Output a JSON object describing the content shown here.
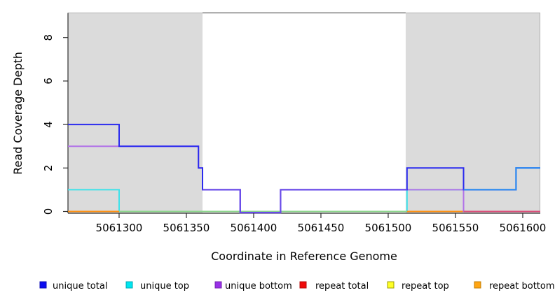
{
  "chart_data": {
    "type": "line",
    "subtype": "step-coverage",
    "title": "",
    "xlabel": "Coordinate in Reference Genome",
    "ylabel": "Read Coverage Depth",
    "xlim": [
      5061262,
      5061613
    ],
    "ylim": [
      0,
      9
    ],
    "grid": false,
    "legend_position": "bottom",
    "x_ticks": [
      5061300,
      5061350,
      5061400,
      5061450,
      5061500,
      5061550,
      5061600
    ],
    "y_ticks": [
      0,
      2,
      4,
      6,
      8
    ],
    "repeat_region_shading": {
      "color": "#DBDBDB",
      "regions": [
        [
          5061262,
          5061362
        ],
        [
          5061513,
          5061613
        ]
      ]
    },
    "series": [
      {
        "name": "unique total",
        "color": "#2B2BEF",
        "steps": [
          [
            5061262,
            4
          ],
          [
            5061300,
            3
          ],
          [
            5061359,
            2
          ],
          [
            5061362,
            1
          ],
          [
            5061390,
            0
          ],
          [
            5061420,
            1
          ],
          [
            5061514,
            2
          ],
          [
            5061556,
            1
          ],
          [
            5061595,
            2
          ],
          [
            5061613,
            2
          ]
        ]
      },
      {
        "name": "unique top",
        "color": "#00E6F0",
        "steps": [
          [
            5061262,
            1
          ],
          [
            5061300,
            0
          ],
          [
            5061514,
            1
          ],
          [
            5061595,
            2
          ],
          [
            5061613,
            2
          ]
        ]
      },
      {
        "name": "unique bottom",
        "color": "#9930E8",
        "steps": [
          [
            5061262,
            3
          ],
          [
            5061359,
            2
          ],
          [
            5061362,
            1
          ],
          [
            5061390,
            0
          ],
          [
            5061420,
            1
          ],
          [
            5061556,
            0
          ],
          [
            5061613,
            0
          ]
        ]
      },
      {
        "name": "repeat total",
        "color": "#F00A0A",
        "steps": [
          [
            5061262,
            0
          ],
          [
            5061613,
            0
          ]
        ]
      },
      {
        "name": "repeat top",
        "color": "#FFFF26",
        "steps": [
          [
            5061262,
            0
          ],
          [
            5061613,
            0
          ]
        ]
      },
      {
        "name": "repeat bottom",
        "color": "#FFA513",
        "steps": [
          [
            5061262,
            0
          ],
          [
            5061556,
            0
          ]
        ]
      }
    ],
    "rendered_polylines": [
      {
        "name": "unique-top-line",
        "color": "#3EE2EA",
        "points": [
          [
            5061262,
            1
          ],
          [
            5061300,
            1
          ],
          [
            5061300,
            0
          ],
          [
            5061514,
            0
          ],
          [
            5061514,
            1
          ],
          [
            5061595,
            1
          ],
          [
            5061595,
            2
          ],
          [
            5061613,
            2
          ]
        ]
      },
      {
        "name": "baseline-blend-green",
        "color": "#8CD68C",
        "points": [
          [
            5061300,
            0
          ],
          [
            5061514,
            0
          ]
        ]
      },
      {
        "name": "baseline-repeat-bottom-left",
        "color": "#FF9012",
        "points": [
          [
            5061262,
            0
          ],
          [
            5061300,
            0
          ]
        ]
      },
      {
        "name": "baseline-repeat-bottom-right",
        "color": "#FF9012",
        "points": [
          [
            5061514,
            0
          ],
          [
            5061556,
            0
          ]
        ]
      },
      {
        "name": "unique-bottom-line",
        "color": "#B273E8",
        "points": [
          [
            5061262,
            3
          ],
          [
            5061359,
            3
          ],
          [
            5061359,
            2
          ],
          [
            5061362,
            2
          ],
          [
            5061362,
            1
          ],
          [
            5061390,
            1
          ],
          [
            5061390,
            -0.05
          ],
          [
            5061420,
            -0.05
          ],
          [
            5061420,
            1
          ],
          [
            5061556,
            1
          ],
          [
            5061556,
            0
          ],
          [
            5061613,
            0
          ]
        ]
      },
      {
        "name": "baseline-repeat-total",
        "color": "#DB4D78",
        "points": [
          [
            5061556,
            0
          ],
          [
            5061613,
            0
          ]
        ]
      },
      {
        "name": "unique-total-line",
        "color": "#2B2BEF",
        "points": [
          [
            5061262,
            4
          ],
          [
            5061300,
            4
          ],
          [
            5061300,
            3
          ],
          [
            5061359,
            3
          ],
          [
            5061359,
            2
          ],
          [
            5061362,
            2
          ],
          [
            5061362,
            1
          ],
          [
            5061390,
            1
          ],
          [
            5061390,
            -0.05
          ],
          [
            5061420,
            -0.05
          ],
          [
            5061420,
            1
          ],
          [
            5061514,
            1
          ],
          [
            5061514,
            2
          ],
          [
            5061556,
            2
          ],
          [
            5061556,
            1
          ],
          [
            5061595,
            1
          ],
          [
            5061595,
            2
          ],
          [
            5061613,
            2
          ]
        ]
      },
      {
        "name": "unique-total-over-bottom-blend",
        "color": "#6B4BE8",
        "points": [
          [
            5061362,
            1
          ],
          [
            5061390,
            1
          ],
          [
            5061390,
            -0.05
          ],
          [
            5061420,
            -0.05
          ],
          [
            5061420,
            1
          ],
          [
            5061514,
            1
          ]
        ]
      },
      {
        "name": "unique-total-over-top-blend",
        "color": "#2E8CF0",
        "points": [
          [
            5061556,
            1
          ],
          [
            5061595,
            1
          ],
          [
            5061595,
            2
          ],
          [
            5061613,
            2
          ]
        ]
      }
    ]
  },
  "axes": {
    "x_label": "Coordinate in Reference Genome",
    "y_label": "Read Coverage Depth"
  },
  "legend": {
    "items": [
      {
        "label": "unique total",
        "swatch_fill": "#0D0DF0",
        "swatch_border": "#0A0AB4"
      },
      {
        "label": "unique top",
        "swatch_fill": "#00E6F0",
        "swatch_border": "#00A8B4"
      },
      {
        "label": "unique bottom",
        "swatch_fill": "#9930E8",
        "swatch_border": "#7423AE"
      },
      {
        "label": "repeat total",
        "swatch_fill": "#F00A0A",
        "swatch_border": "#B40808"
      },
      {
        "label": "repeat top",
        "swatch_fill": "#FFFF26",
        "swatch_border": "#9C9C00"
      },
      {
        "label": "repeat bottom",
        "swatch_fill": "#FFA513",
        "swatch_border": "#C27C00"
      }
    ]
  },
  "colors": {
    "background": "#FFFFFF",
    "shade_gray": "#DBDBDB",
    "axis_dark": "#2F2F2F",
    "box_faint": "#B0B0B0"
  }
}
